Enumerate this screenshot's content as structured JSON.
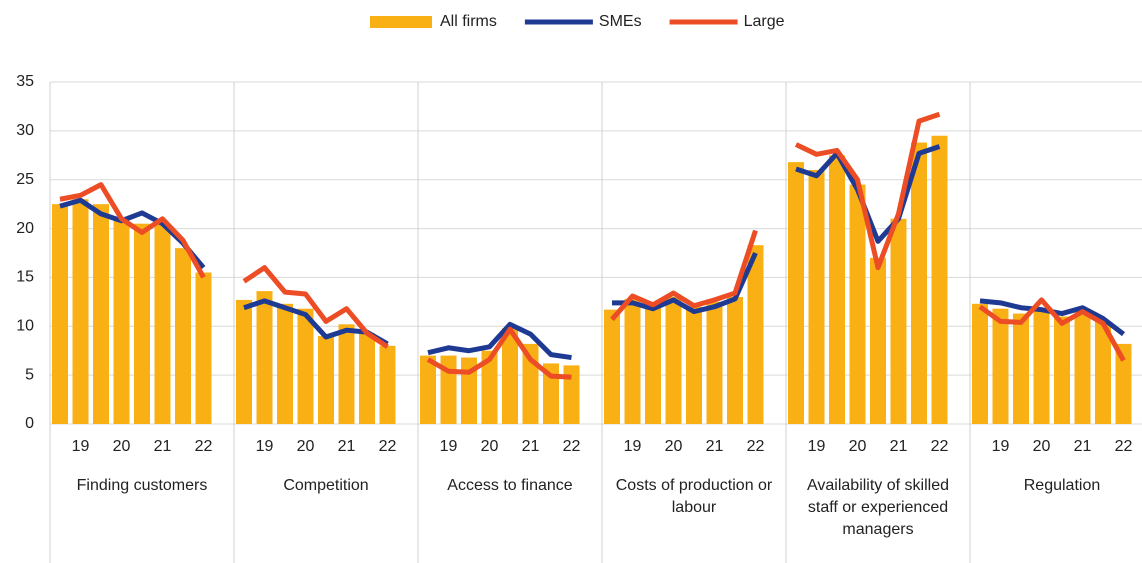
{
  "chart_data": {
    "type": "bar",
    "groups": [
      "Finding customers",
      "Competition",
      "Access to finance",
      "Costs of production or labour",
      "Availability of skilled staff or experienced managers",
      "Regulation"
    ],
    "categories": [
      null,
      "19",
      null,
      "20",
      null,
      "21",
      null,
      "22",
      null,
      "19",
      null,
      "20",
      null,
      "21",
      null,
      "22",
      null,
      "19",
      null,
      "20",
      null,
      "21",
      null,
      "22",
      null,
      "19",
      null,
      "20",
      null,
      "21",
      null,
      "22",
      null,
      "19",
      null,
      "20",
      null,
      "21",
      null,
      "22",
      null,
      "19",
      null,
      "20",
      null,
      "21",
      null,
      "22"
    ],
    "series": [
      {
        "name": "All firms",
        "type": "bar",
        "color": "#f9b015",
        "values": [
          22.5,
          23,
          22.5,
          21,
          20.5,
          20.5,
          18,
          15.5,
          12.7,
          13.6,
          12.3,
          11.8,
          9,
          10.2,
          9.3,
          8,
          7,
          7,
          6.8,
          7.5,
          9.8,
          8.2,
          6.2,
          6,
          11.7,
          12.8,
          12,
          13,
          12,
          12.5,
          13,
          18.3,
          26.8,
          26,
          27.5,
          24.5,
          17,
          21,
          28.8,
          29.5,
          12.3,
          11.8,
          11.3,
          11.8,
          11,
          11.5,
          10.5,
          8.2
        ]
      },
      {
        "name": "SMEs",
        "type": "line",
        "color": "#1f3a93",
        "values": [
          22.3,
          22.9,
          21.5,
          20.8,
          21.6,
          20.5,
          18.5,
          16,
          11.9,
          12.6,
          11.9,
          11.2,
          8.9,
          9.6,
          9.4,
          8.2,
          7.3,
          7.8,
          7.5,
          7.9,
          10.2,
          9.2,
          7.1,
          6.8,
          12.4,
          12.4,
          11.8,
          12.7,
          11.5,
          12,
          12.8,
          17.5,
          26.1,
          25.4,
          27.7,
          24,
          18.7,
          21,
          27.7,
          28.4,
          12.6,
          12.4,
          11.9,
          11.7,
          11.3,
          11.9,
          10.8,
          9.2
        ]
      },
      {
        "name": "Large",
        "type": "line",
        "color": "#ec4d25",
        "values": [
          23,
          23.4,
          24.5,
          21,
          19.6,
          21,
          18.8,
          15,
          14.6,
          16,
          13.5,
          13.3,
          10.5,
          11.8,
          9.3,
          7.9,
          6.6,
          5.4,
          5.3,
          6.6,
          9.7,
          6.6,
          4.9,
          4.8,
          10.7,
          13.1,
          12.2,
          13.4,
          12.1,
          12.7,
          13.4,
          19.8,
          28.6,
          27.6,
          28,
          25,
          16,
          21.5,
          31,
          31.7,
          12,
          10.5,
          10.4,
          12.7,
          10.3,
          11.5,
          10.3,
          6.5
        ]
      }
    ],
    "ylim": [
      0,
      35
    ],
    "yticks": [
      0,
      5,
      10,
      15,
      20,
      25,
      30,
      35
    ],
    "grid": true
  }
}
